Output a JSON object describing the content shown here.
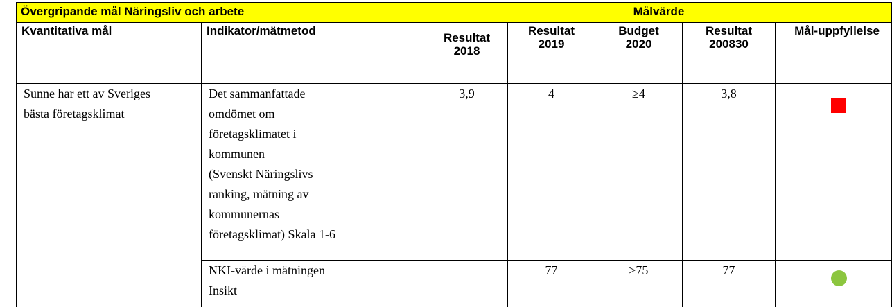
{
  "header": {
    "title": "Övergripande mål Näringsliv och arbete",
    "target_label": "Målvärde"
  },
  "columns": [
    "Kvantitativa mål",
    "Indikator/mätmetod",
    "Resultat 2018",
    "Resultat 2019",
    "Budget 2020",
    "Resultat 200830",
    "Mål-uppfyllelse"
  ],
  "rows": [
    {
      "goal": "Sunne har ett av Sveriges bästa företagsklimat",
      "indicators": [
        {
          "text": "Det sammanfattade\nomdömet om\nföretagsklimatet i\nkommunen\n(Svenskt Näringslivs\nranking, mätning av\nkommunernas\nföretagsklimat) Skala 1-6",
          "values": [
            "3,9",
            "4",
            "≥4",
            "3,8"
          ]
        },
        {
          "text": "NKI-värde i mätningen\nInsikt",
          "values": [
            null,
            "77",
            "≥75",
            "77"
          ]
        }
      ]
    }
  ]
}
